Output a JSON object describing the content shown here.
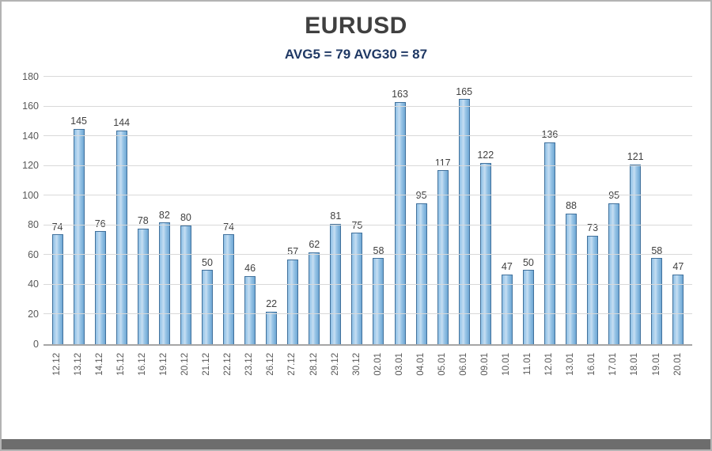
{
  "chart": {
    "title": "EURUSD",
    "subtitle": "AVG5 = 79 AVG30 = 87"
  },
  "chart_data": {
    "type": "bar",
    "title": "EURUSD",
    "subtitle": "AVG5 = 79 AVG30 = 87",
    "categories": [
      "12.12",
      "13.12",
      "14.12",
      "15.12",
      "16.12",
      "19.12",
      "20.12",
      "21.12",
      "22.12",
      "23.12",
      "26.12",
      "27.12",
      "28.12",
      "29.12",
      "30.12",
      "02.01",
      "03.01",
      "04.01",
      "05.01",
      "06.01",
      "09.01",
      "10.01",
      "11.01",
      "12.01",
      "13.01",
      "16.01",
      "17.01",
      "18.01",
      "19.01",
      "20.01"
    ],
    "values": [
      74,
      145,
      76,
      144,
      78,
      82,
      80,
      50,
      74,
      46,
      22,
      57,
      62,
      81,
      75,
      58,
      163,
      95,
      117,
      165,
      122,
      47,
      50,
      136,
      88,
      73,
      95,
      121,
      58,
      47
    ],
    "ylim": [
      0,
      180
    ],
    "ytick_step": 20,
    "grid": "horizontal",
    "legend": "none",
    "bar_fill": "#9dc3e6",
    "bar_border": "#41719c",
    "value_labels": "above-bars"
  }
}
